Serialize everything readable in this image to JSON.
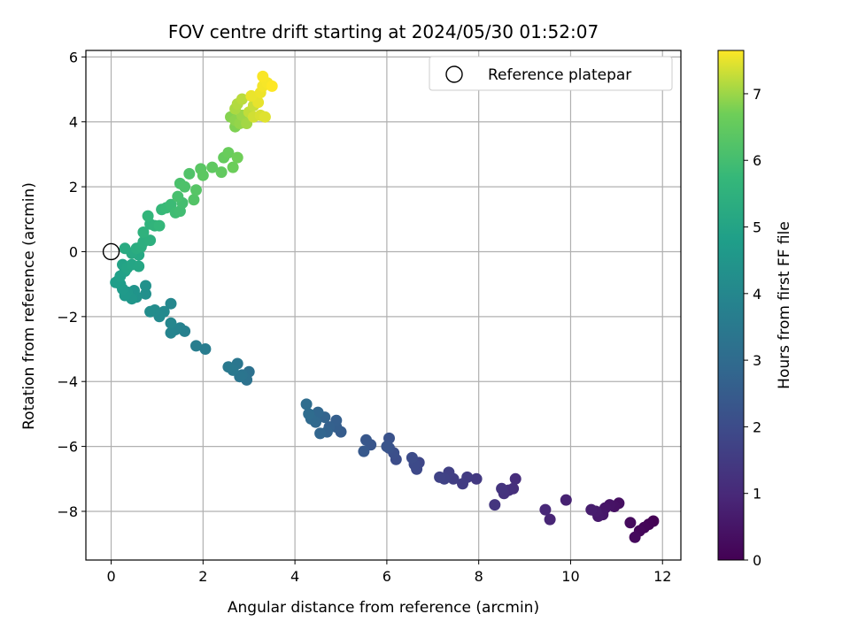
{
  "chart_data": {
    "type": "scatter",
    "title": "FOV centre drift starting at 2024/05/30 01:52:07",
    "xlabel": "Angular distance from reference (arcmin)",
    "ylabel": "Rotation from reference (arcmin)",
    "xlim": [
      -0.55,
      12.4
    ],
    "ylim": [
      -9.5,
      6.2
    ],
    "xticks": [
      0,
      2,
      4,
      6,
      8,
      10,
      12
    ],
    "yticks": [
      -8,
      -6,
      -4,
      -2,
      0,
      2,
      4,
      6
    ],
    "grid": true,
    "legend": {
      "label": "Reference platepar",
      "position": "top-right"
    },
    "reference_point": {
      "x": 0,
      "y": 0
    },
    "colorbar": {
      "label": "Hours from first FF file",
      "range": [
        0,
        7.65
      ],
      "ticks": [
        0,
        1,
        2,
        3,
        4,
        5,
        6,
        7
      ],
      "colormap": "viridis"
    },
    "series": [
      {
        "points": [
          [
            11.8,
            -8.3,
            0.0
          ],
          [
            11.7,
            -8.4,
            0.05
          ],
          [
            11.6,
            -8.5,
            0.1
          ],
          [
            11.5,
            -8.6,
            0.15
          ],
          [
            11.4,
            -8.8,
            0.2
          ],
          [
            11.3,
            -8.35,
            0.25
          ],
          [
            11.05,
            -7.75,
            0.35
          ],
          [
            10.95,
            -7.85,
            0.4
          ],
          [
            10.85,
            -7.8,
            0.45
          ],
          [
            10.75,
            -7.9,
            0.5
          ],
          [
            10.7,
            -8.1,
            0.55
          ],
          [
            10.6,
            -8.15,
            0.6
          ],
          [
            10.55,
            -8.0,
            0.65
          ],
          [
            10.45,
            -7.95,
            0.7
          ],
          [
            9.9,
            -7.65,
            0.8
          ],
          [
            9.55,
            -8.25,
            0.9
          ],
          [
            9.45,
            -7.95,
            0.95
          ],
          [
            8.8,
            -7.0,
            1.1
          ],
          [
            8.75,
            -7.3,
            1.15
          ],
          [
            8.65,
            -7.35,
            1.2
          ],
          [
            8.55,
            -7.45,
            1.25
          ],
          [
            8.5,
            -7.3,
            1.3
          ],
          [
            8.35,
            -7.8,
            1.35
          ],
          [
            7.95,
            -7.0,
            1.45
          ],
          [
            7.75,
            -6.95,
            1.5
          ],
          [
            7.65,
            -7.15,
            1.55
          ],
          [
            7.45,
            -7.0,
            1.6
          ],
          [
            7.35,
            -6.8,
            1.65
          ],
          [
            7.25,
            -7.0,
            1.7
          ],
          [
            7.15,
            -6.95,
            1.75
          ],
          [
            6.7,
            -6.5,
            1.85
          ],
          [
            6.65,
            -6.7,
            1.9
          ],
          [
            6.6,
            -6.55,
            1.95
          ],
          [
            6.55,
            -6.35,
            2.0
          ],
          [
            6.2,
            -6.4,
            2.05
          ],
          [
            6.15,
            -6.2,
            2.1
          ],
          [
            6.05,
            -6.05,
            2.15
          ],
          [
            6.05,
            -5.75,
            2.2
          ],
          [
            6.0,
            -6.0,
            2.25
          ],
          [
            5.65,
            -5.95,
            2.3
          ],
          [
            5.55,
            -5.8,
            2.35
          ],
          [
            5.5,
            -6.15,
            2.4
          ],
          [
            5.0,
            -5.55,
            2.5
          ],
          [
            4.9,
            -5.4,
            2.55
          ],
          [
            4.9,
            -5.2,
            2.6
          ],
          [
            4.75,
            -5.4,
            2.65
          ],
          [
            4.7,
            -5.55,
            2.7
          ],
          [
            4.65,
            -5.1,
            2.75
          ],
          [
            4.55,
            -5.6,
            2.8
          ],
          [
            4.5,
            -4.95,
            2.85
          ],
          [
            4.45,
            -5.25,
            2.9
          ],
          [
            4.35,
            -5.15,
            2.95
          ],
          [
            4.3,
            -5.0,
            3.0
          ],
          [
            4.25,
            -4.7,
            3.05
          ],
          [
            3.0,
            -3.7,
            3.2
          ],
          [
            2.95,
            -3.95,
            3.25
          ],
          [
            2.85,
            -3.8,
            3.3
          ],
          [
            2.8,
            -3.85,
            3.35
          ],
          [
            2.75,
            -3.45,
            3.4
          ],
          [
            2.65,
            -3.65,
            3.45
          ],
          [
            2.55,
            -3.55,
            3.5
          ],
          [
            2.05,
            -3.0,
            3.6
          ],
          [
            1.85,
            -2.9,
            3.65
          ],
          [
            1.6,
            -2.45,
            3.75
          ],
          [
            1.5,
            -2.35,
            3.8
          ],
          [
            1.4,
            -2.4,
            3.85
          ],
          [
            1.3,
            -2.5,
            3.9
          ],
          [
            1.3,
            -2.2,
            3.95
          ],
          [
            1.3,
            -1.6,
            4.0
          ],
          [
            1.15,
            -1.85,
            4.05
          ],
          [
            1.05,
            -2.0,
            4.1
          ],
          [
            0.95,
            -1.8,
            4.15
          ],
          [
            0.85,
            -1.85,
            4.2
          ],
          [
            0.75,
            -1.3,
            4.3
          ],
          [
            0.75,
            -1.05,
            4.35
          ],
          [
            0.55,
            -1.4,
            4.4
          ],
          [
            0.5,
            -1.2,
            4.45
          ],
          [
            0.45,
            -1.45,
            4.5
          ],
          [
            0.35,
            -1.25,
            4.55
          ],
          [
            0.3,
            -1.35,
            4.6
          ],
          [
            0.25,
            -1.15,
            4.65
          ],
          [
            0.2,
            -1.0,
            4.7
          ],
          [
            0.15,
            -0.9,
            4.75
          ],
          [
            0.1,
            -0.95,
            4.8
          ],
          [
            0.2,
            -0.75,
            4.85
          ],
          [
            0.3,
            -0.6,
            4.9
          ],
          [
            0.25,
            -0.4,
            4.95
          ],
          [
            0.35,
            -0.5,
            5.0
          ],
          [
            0.45,
            -0.4,
            5.05
          ],
          [
            0.6,
            -0.45,
            5.1
          ],
          [
            0.6,
            -0.1,
            5.15
          ],
          [
            0.45,
            -0.05,
            5.2
          ],
          [
            0.3,
            0.1,
            5.25
          ],
          [
            0.55,
            0.1,
            5.3
          ],
          [
            0.65,
            0.15,
            5.35
          ],
          [
            0.7,
            0.3,
            5.4
          ],
          [
            0.85,
            0.35,
            5.45
          ],
          [
            0.7,
            0.6,
            5.5
          ],
          [
            0.85,
            0.85,
            5.55
          ],
          [
            0.95,
            0.8,
            5.6
          ],
          [
            0.8,
            1.1,
            5.65
          ],
          [
            1.05,
            0.8,
            5.7
          ],
          [
            1.1,
            1.3,
            5.75
          ],
          [
            1.2,
            1.35,
            5.8
          ],
          [
            1.3,
            1.45,
            5.85
          ],
          [
            1.4,
            1.2,
            5.9
          ],
          [
            1.5,
            1.25,
            5.95
          ],
          [
            1.55,
            1.5,
            6.0
          ],
          [
            1.45,
            1.7,
            6.05
          ],
          [
            1.5,
            2.1,
            6.1
          ],
          [
            1.6,
            2.0,
            6.15
          ],
          [
            1.7,
            2.4,
            6.2
          ],
          [
            1.8,
            1.6,
            6.25
          ],
          [
            1.85,
            1.9,
            6.3
          ],
          [
            1.95,
            2.55,
            6.35
          ],
          [
            2.0,
            2.35,
            6.4
          ],
          [
            2.2,
            2.6,
            6.45
          ],
          [
            2.4,
            2.45,
            6.5
          ],
          [
            2.45,
            2.9,
            6.55
          ],
          [
            2.55,
            3.05,
            6.6
          ],
          [
            2.65,
            2.6,
            6.65
          ],
          [
            2.75,
            2.9,
            6.7
          ],
          [
            2.7,
            3.85,
            6.8
          ],
          [
            2.6,
            4.15,
            6.85
          ],
          [
            2.7,
            4.05,
            6.9
          ],
          [
            2.8,
            3.95,
            6.95
          ],
          [
            2.85,
            4.2,
            7.0
          ],
          [
            2.95,
            3.95,
            7.05
          ],
          [
            2.7,
            4.4,
            7.1
          ],
          [
            2.75,
            4.55,
            7.15
          ],
          [
            2.85,
            4.7,
            7.2
          ],
          [
            3.0,
            4.3,
            7.25
          ],
          [
            3.1,
            4.5,
            7.3
          ],
          [
            3.1,
            4.15,
            7.35
          ],
          [
            3.25,
            4.2,
            7.4
          ],
          [
            3.35,
            4.15,
            7.45
          ],
          [
            3.2,
            4.6,
            7.5
          ],
          [
            3.05,
            4.8,
            7.52
          ],
          [
            3.25,
            4.9,
            7.55
          ],
          [
            3.3,
            5.1,
            7.58
          ],
          [
            3.4,
            5.2,
            7.6
          ],
          [
            3.3,
            5.4,
            7.62
          ],
          [
            3.5,
            5.1,
            7.65
          ]
        ]
      }
    ]
  }
}
